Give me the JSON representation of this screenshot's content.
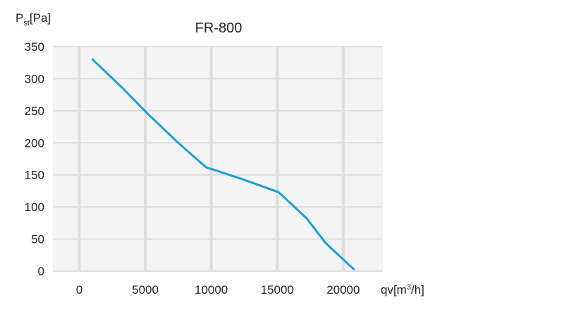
{
  "chart_data": {
    "type": "line",
    "title": "FR-800",
    "ylabel": {
      "main": "P",
      "sub": "st",
      "unit": "[Pa]"
    },
    "xlabel": {
      "prefix": "qv[m",
      "sup": "3",
      "suffix": "/h]"
    },
    "xlim": [
      -2000,
      23000
    ],
    "ylim": [
      0,
      350
    ],
    "x_ticks": [
      0,
      5000,
      10000,
      15000,
      20000
    ],
    "x_tick_labels": [
      "0",
      "5000",
      "10000",
      "15000",
      "20000"
    ],
    "y_ticks": [
      0,
      50,
      100,
      150,
      200,
      250,
      300,
      350
    ],
    "y_tick_labels": [
      "0",
      "50",
      "100",
      "150",
      "200",
      "250",
      "300",
      "350"
    ],
    "grid": true,
    "series": [
      {
        "color": "#1a9fd4",
        "x": [
          1000,
          3300,
          5200,
          7500,
          9600,
          12400,
          15100,
          17200,
          18700,
          20800
        ],
        "y": [
          330,
          285,
          245,
          200,
          162,
          143,
          123,
          83,
          43,
          3
        ]
      }
    ],
    "colors": {
      "plot_bg": "#f4f4f4",
      "grid": "#dddddd",
      "line": "#1a9fd4",
      "text": "#222222"
    }
  }
}
